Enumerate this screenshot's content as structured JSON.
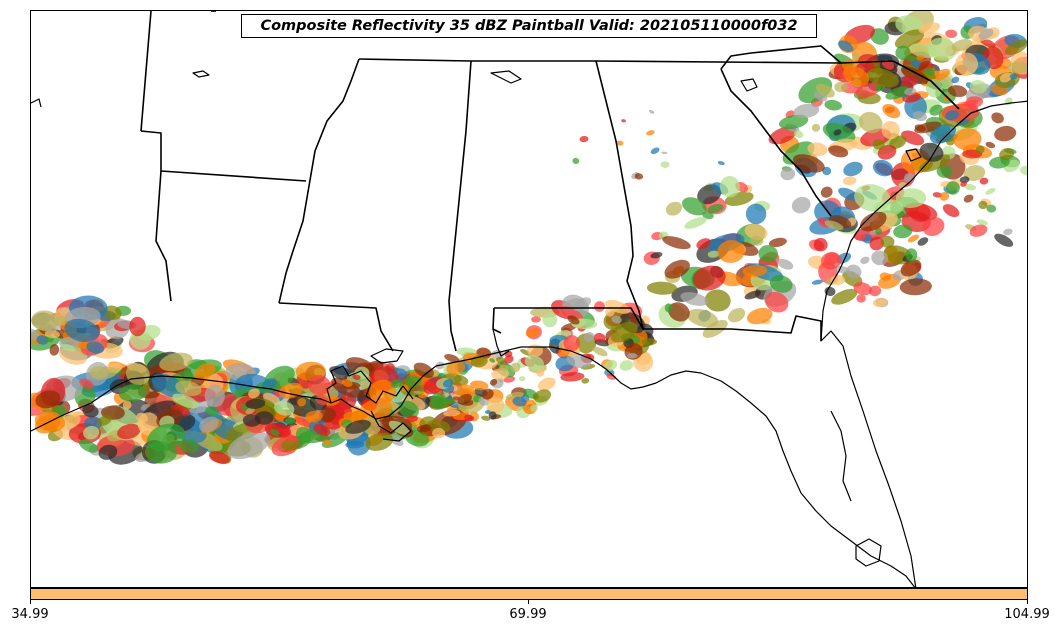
{
  "title": "Composite Reflectivity 35 dBZ Paintball Valid: 202105110000f032",
  "colorbar": {
    "color": "#fdbf6f",
    "ticks": [
      "34.99",
      "69.99",
      "104.99"
    ]
  },
  "colors": {
    "state_lines": "#000000",
    "coastline": "#000000",
    "background": "#ffffff"
  },
  "paintball_member_colors": [
    "#e31a1c",
    "#ff7f00",
    "#fdbf6f",
    "#33a02c",
    "#1f78b4",
    "#a6a6a6",
    "#8c2d04",
    "#b2df8a",
    "#808000",
    "#2b2b2b",
    "#ff4040",
    "#bdb45a"
  ],
  "map": {
    "features": [
      "state-boundaries",
      "coastline",
      "reflectivity-paintball"
    ]
  }
}
